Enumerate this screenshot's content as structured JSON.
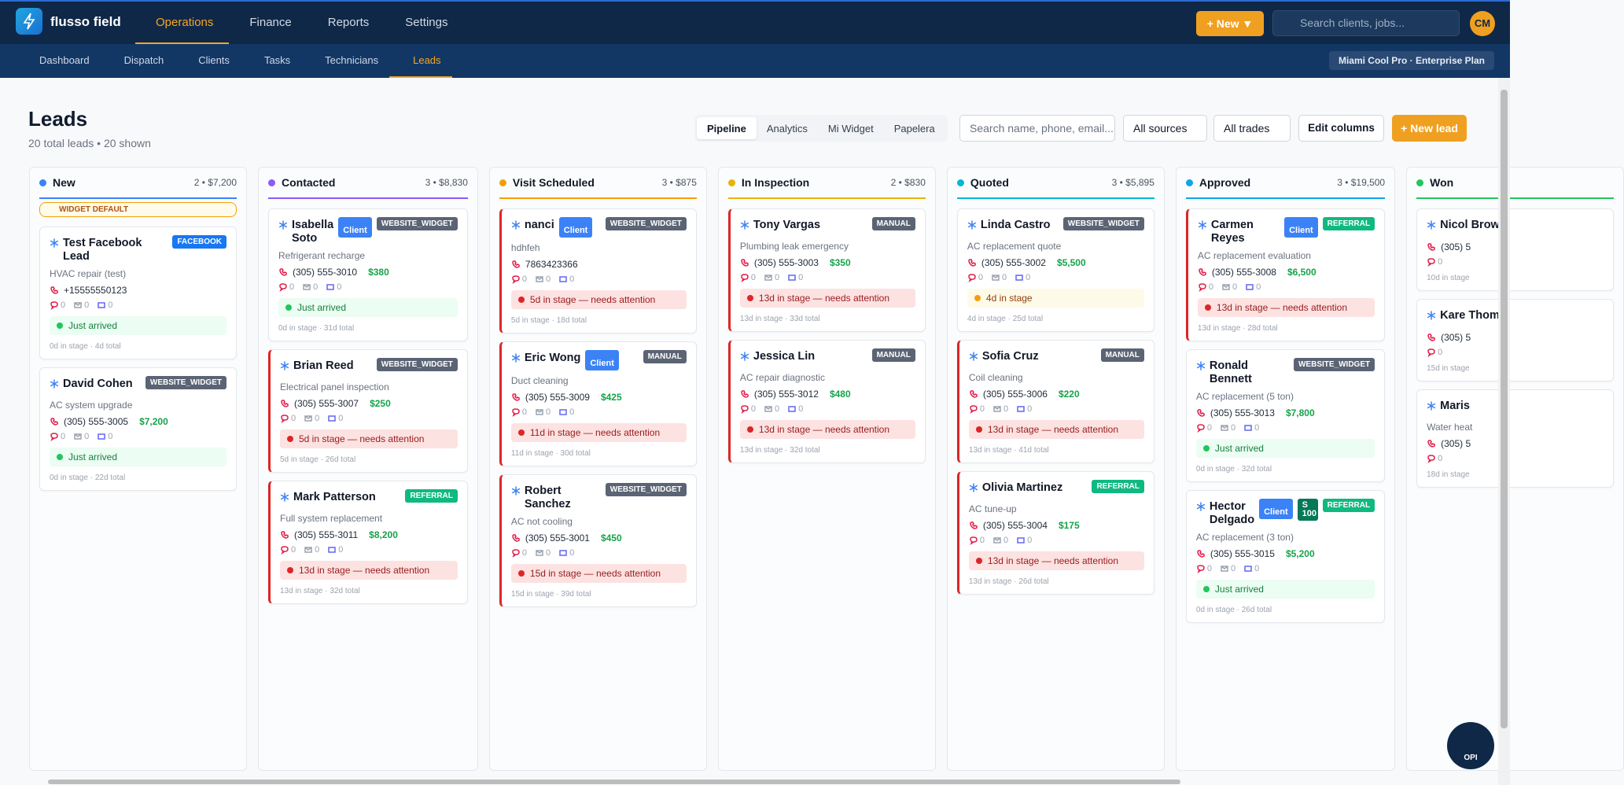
{
  "nav": {
    "brand": "flusso field",
    "tabs": [
      "Operations",
      "Finance",
      "Reports",
      "Settings"
    ],
    "new_button": "+ New ▼",
    "search_placeholder": "Search clients, jobs...",
    "avatar": "CM"
  },
  "subnav": {
    "items": [
      "Dashboard",
      "Dispatch",
      "Clients",
      "Tasks",
      "Technicians",
      "Leads"
    ],
    "plan": "Miami Cool Pro · Enterprise Plan"
  },
  "page": {
    "title": "Leads",
    "subtitle": "20 total leads • 20 shown",
    "view_tabs": [
      "Pipeline",
      "Analytics",
      "Mi Widget",
      "Papelera"
    ],
    "search_placeholder": "Search name, phone, email...",
    "filters": [
      "All sources",
      "All trades"
    ],
    "edit_columns": "Edit columns",
    "new_lead": "+ New lead"
  },
  "columns": [
    {
      "name": "New",
      "summary": "2 • $7,200",
      "color": "#3b82f6",
      "badge": "WIDGET DEFAULT",
      "cards": [
        {
          "name": "Test Facebook Lead",
          "tags": [
            {
              "text": "FACEBOOK",
              "kind": "fb"
            }
          ],
          "desc": "HVAC repair (test)",
          "phone": "+15555550123",
          "counts": [
            0,
            0,
            0
          ],
          "status": "Just arrived",
          "status_kind": "ok",
          "stage": "0d in stage",
          "total": "4d total"
        },
        {
          "name": "David Cohen",
          "tags": [
            {
              "text": "WEBSITE_WIDGET",
              "kind": "gray"
            }
          ],
          "desc": "AC system upgrade",
          "phone": "(305) 555-3005",
          "amount": "$7,200",
          "counts": [
            0,
            0,
            0
          ],
          "status": "Just arrived",
          "status_kind": "ok",
          "stage": "0d in stage",
          "total": "22d total"
        }
      ]
    },
    {
      "name": "Contacted",
      "summary": "3 • $8,830",
      "color": "#8b5cf6",
      "cards": [
        {
          "name": "Isabella Soto",
          "tags": [
            {
              "text": "Client",
              "kind": "client"
            },
            {
              "text": "WEBSITE_WIDGET",
              "kind": "gray"
            }
          ],
          "desc": "Refrigerant recharge",
          "phone": "(305) 555-3010",
          "amount": "$380",
          "counts": [
            0,
            0,
            0
          ],
          "status": "Just arrived",
          "status_kind": "ok",
          "stage": "0d in stage",
          "total": "31d total"
        },
        {
          "name": "Brian Reed",
          "tags": [
            {
              "text": "WEBSITE_WIDGET",
              "kind": "gray"
            }
          ],
          "desc": "Electrical panel inspection",
          "phone": "(305) 555-3007",
          "amount": "$250",
          "counts": [
            0,
            0,
            0
          ],
          "status": "5d in stage — needs attention",
          "status_kind": "alert",
          "stage": "5d in stage",
          "total": "26d total"
        },
        {
          "name": "Mark Patterson",
          "tags": [
            {
              "text": "REFERRAL",
              "kind": "green"
            }
          ],
          "desc": "Full system replacement",
          "phone": "(305) 555-3011",
          "amount": "$8,200",
          "counts": [
            0,
            0,
            0
          ],
          "status": "13d in stage — needs attention",
          "status_kind": "alert",
          "stage": "13d in stage",
          "total": "32d total"
        }
      ]
    },
    {
      "name": "Visit Scheduled",
      "summary": "3 • $875",
      "color": "#f59e0b",
      "cards": [
        {
          "name": "nanci",
          "tags": [
            {
              "text": "Client",
              "kind": "client"
            },
            {
              "text": "WEBSITE_WIDGET",
              "kind": "gray"
            }
          ],
          "desc": "hdhfeh",
          "phone": "7863423366",
          "counts": [
            0,
            0,
            0
          ],
          "status": "5d in stage — needs attention",
          "status_kind": "alert",
          "stage": "5d in stage",
          "total": "18d total"
        },
        {
          "name": "Eric Wong",
          "tags": [
            {
              "text": "Client",
              "kind": "client"
            },
            {
              "text": "MANUAL",
              "kind": "gray"
            }
          ],
          "desc": "Duct cleaning",
          "phone": "(305) 555-3009",
          "amount": "$425",
          "counts": [
            0,
            0,
            0
          ],
          "status": "11d in stage — needs attention",
          "status_kind": "alert",
          "stage": "11d in stage",
          "total": "30d total"
        },
        {
          "name": "Robert Sanchez",
          "tags": [
            {
              "text": "WEBSITE_WIDGET",
              "kind": "gray"
            }
          ],
          "desc": "AC not cooling",
          "phone": "(305) 555-3001",
          "amount": "$450",
          "counts": [
            0,
            0,
            0
          ],
          "status": "15d in stage — needs attention",
          "status_kind": "alert",
          "stage": "15d in stage",
          "total": "39d total"
        }
      ]
    },
    {
      "name": "In Inspection",
      "summary": "2 • $830",
      "color": "#eab308",
      "cards": [
        {
          "name": "Tony Vargas",
          "tags": [
            {
              "text": "MANUAL",
              "kind": "gray"
            }
          ],
          "desc": "Plumbing leak emergency",
          "phone": "(305) 555-3003",
          "amount": "$350",
          "counts": [
            0,
            0,
            0
          ],
          "status": "13d in stage — needs attention",
          "status_kind": "alert",
          "stage": "13d in stage",
          "total": "33d total"
        },
        {
          "name": "Jessica Lin",
          "tags": [
            {
              "text": "MANUAL",
              "kind": "gray"
            }
          ],
          "desc": "AC repair diagnostic",
          "phone": "(305) 555-3012",
          "amount": "$480",
          "counts": [
            0,
            0,
            0
          ],
          "status": "13d in stage — needs attention",
          "status_kind": "alert",
          "stage": "13d in stage",
          "total": "32d total"
        }
      ]
    },
    {
      "name": "Quoted",
      "summary": "3 • $5,895",
      "color": "#06b6d4",
      "cards": [
        {
          "name": "Linda Castro",
          "tags": [
            {
              "text": "WEBSITE_WIDGET",
              "kind": "gray"
            }
          ],
          "desc": "AC replacement quote",
          "phone": "(305) 555-3002",
          "amount": "$5,500",
          "counts": [
            0,
            0,
            0
          ],
          "status": "4d in stage",
          "status_kind": "warn",
          "stage": "4d in stage",
          "total": "25d total"
        },
        {
          "name": "Sofia Cruz",
          "tags": [
            {
              "text": "MANUAL",
              "kind": "gray"
            }
          ],
          "desc": "Coil cleaning",
          "phone": "(305) 555-3006",
          "amount": "$220",
          "counts": [
            0,
            0,
            0
          ],
          "status": "13d in stage — needs attention",
          "status_kind": "alert",
          "stage": "13d in stage",
          "total": "41d total"
        },
        {
          "name": "Olivia Martinez",
          "tags": [
            {
              "text": "REFERRAL",
              "kind": "green"
            }
          ],
          "desc": "AC tune-up",
          "phone": "(305) 555-3004",
          "amount": "$175",
          "counts": [
            0,
            0,
            0
          ],
          "status": "13d in stage — needs attention",
          "status_kind": "alert",
          "stage": "13d in stage",
          "total": "26d total"
        }
      ]
    },
    {
      "name": "Approved",
      "summary": "3 • $19,500",
      "color": "#0ea5e9",
      "cards": [
        {
          "name": "Carmen Reyes",
          "tags": [
            {
              "text": "Client",
              "kind": "client"
            },
            {
              "text": "REFERRAL",
              "kind": "green"
            }
          ],
          "desc": "AC replacement evaluation",
          "phone": "(305) 555-3008",
          "amount": "$6,500",
          "counts": [
            0,
            0,
            0
          ],
          "status": "13d in stage — needs attention",
          "status_kind": "alert",
          "stage": "13d in stage",
          "total": "28d total"
        },
        {
          "name": "Ronald Bennett",
          "tags": [
            {
              "text": "WEBSITE_WIDGET",
              "kind": "gray"
            }
          ],
          "desc": "AC replacement (5 ton)",
          "phone": "(305) 555-3013",
          "amount": "$7,800",
          "counts": [
            0,
            0,
            0
          ],
          "status": "Just arrived",
          "status_kind": "ok",
          "stage": "0d in stage",
          "total": "32d total"
        },
        {
          "name": "Hector Delgado",
          "tags": [
            {
              "text": "Client",
              "kind": "client"
            },
            {
              "text": "S 100",
              "kind": "dgreen"
            },
            {
              "text": "REFERRAL",
              "kind": "green"
            }
          ],
          "desc": "AC replacement (3 ton)",
          "phone": "(305) 555-3015",
          "amount": "$5,200",
          "counts": [
            0,
            0,
            0
          ],
          "status": "Just arrived",
          "status_kind": "ok",
          "stage": "0d in stage",
          "total": "26d total"
        }
      ]
    },
    {
      "name": "Won",
      "color": "#22c55e",
      "cards": [
        {
          "name": "Nicol Brow",
          "tags": [],
          "phone": "(305) 5",
          "counts": [
            0
          ],
          "stage": "10d in stage"
        },
        {
          "name": "Kare Thom",
          "tags": [],
          "phone": "(305) 5",
          "counts": [
            0
          ],
          "stage": "15d in stage"
        },
        {
          "name": "Maris",
          "tags": [],
          "desc": "Water heat",
          "phone": "(305) 5",
          "counts": [
            0
          ],
          "stage": "18d in stage"
        }
      ]
    }
  ],
  "chat": {
    "label": "OPI"
  }
}
